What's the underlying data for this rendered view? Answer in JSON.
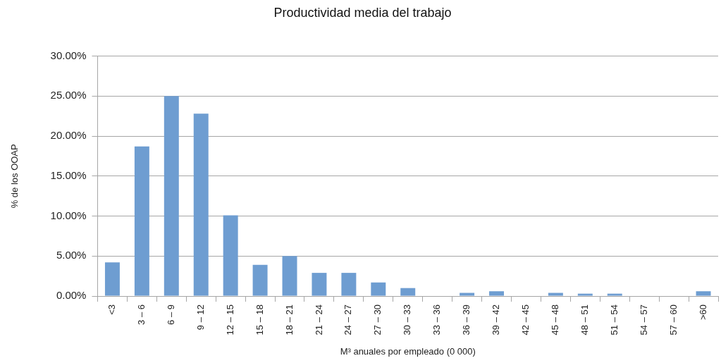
{
  "chart_data": {
    "type": "bar",
    "title": "Productividad media del trabajo",
    "xlabel": "M³ anuales por empleado (0 000)",
    "ylabel": "% de los OOAP",
    "categories": [
      "<3",
      "3 – 6",
      "6 – 9",
      "9 – 12",
      "12 – 15",
      "15 – 18",
      "18 – 21",
      "21 – 24",
      "24 – 27",
      "27 – 30",
      "30 – 33",
      "33 – 36",
      "36 – 39",
      "39 – 42",
      "42 – 45",
      "45 – 48",
      "48 – 51",
      "51 – 54",
      "54 – 57",
      "57 – 60",
      ">60"
    ],
    "values": [
      4.2,
      18.7,
      25.0,
      22.8,
      10.1,
      3.9,
      5.0,
      2.9,
      2.9,
      1.7,
      1.0,
      0,
      0.4,
      0.6,
      0,
      0.4,
      0.3,
      0.3,
      0,
      0,
      0.6
    ],
    "color": "#6e9dd1",
    "ylim": [
      0,
      30
    ],
    "yticks": [
      {
        "value": 0,
        "label": "0.00%"
      },
      {
        "value": 5,
        "label": "5.00%"
      },
      {
        "value": 10,
        "label": "10.00%"
      },
      {
        "value": 15,
        "label": "15.00%"
      },
      {
        "value": 20,
        "label": "20.00%"
      },
      {
        "value": 25,
        "label": "25.00%"
      },
      {
        "value": 30,
        "label": "30.00%"
      }
    ],
    "grid": "y"
  }
}
